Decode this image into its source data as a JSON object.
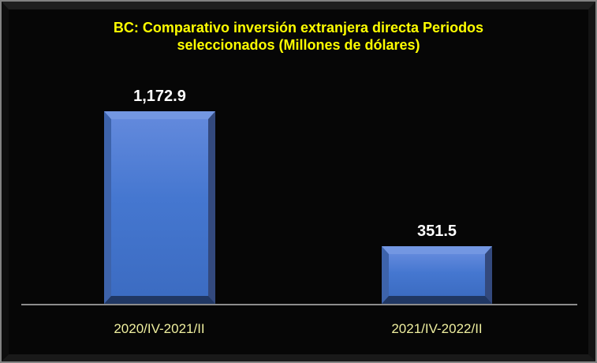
{
  "window": {
    "background": "#060606",
    "frame_border_color": "#828282"
  },
  "chart_data": {
    "type": "bar",
    "title": "BC: Comparativo inversión extranjera directa Periodos seleccionados (Millones de dólares)",
    "title_lines": {
      "line1": "BC: Comparativo inversión extranjera directa Periodos",
      "line2": "seleccionados (Millones de dólares)"
    },
    "categories": [
      "2020/IV-2021/II",
      "2021/IV-2022/II"
    ],
    "values": [
      1172.9,
      351.5
    ],
    "value_labels": [
      "1,172.9",
      "351.5"
    ],
    "xlabel": "",
    "ylabel": "",
    "ylim": [
      0,
      1200
    ],
    "grid": false,
    "legend": false,
    "y_axis_visible": false,
    "baseline_visible": true,
    "colors": {
      "bar_face": "#4a79d1",
      "bar_bevel_top": "#7397e2",
      "bar_bevel_left": "#3d63ab",
      "bar_bevel_right": "#33497d",
      "bar_bevel_bottom": "#203763",
      "title_text": "#ffff00",
      "value_label_text": "#ffffff",
      "category_label_text": "#eeee9e",
      "axis_line": "#8c8c8c",
      "background": "#060606"
    }
  }
}
